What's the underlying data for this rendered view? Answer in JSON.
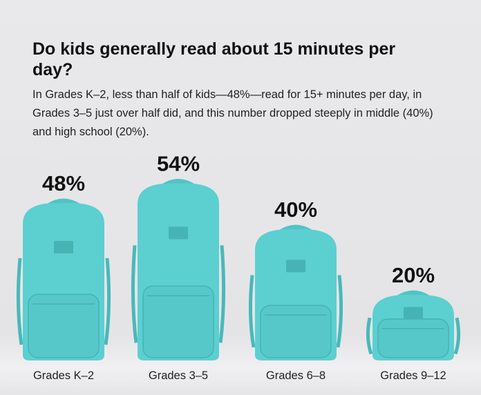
{
  "chart_data": {
    "type": "pictorial-bar",
    "title": "Do kids generally read about 15 minutes per day?",
    "subtitle": "In Grades K–2, less than half of kids—48%—read for 15+ minutes per day, in Grades 3–5 just over half did, and this number dropped steeply in middle (40%) and high school (20%).",
    "categories": [
      "Grades K–2",
      "Grades 3–5",
      "Grades 6–8",
      "Grades 9–12"
    ],
    "values": [
      48,
      54,
      40,
      20
    ],
    "value_labels": [
      "48%",
      "54%",
      "40%",
      "20%"
    ],
    "color": "#5ccfd1"
  }
}
